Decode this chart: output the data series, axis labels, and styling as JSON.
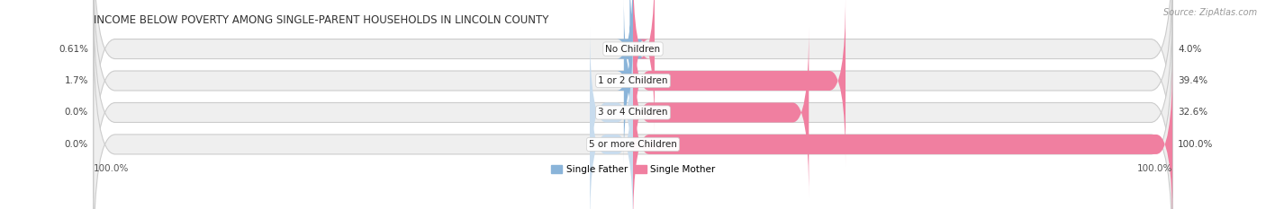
{
  "title": "INCOME BELOW POVERTY AMONG SINGLE-PARENT HOUSEHOLDS IN LINCOLN COUNTY",
  "source": "Source: ZipAtlas.com",
  "categories": [
    "No Children",
    "1 or 2 Children",
    "3 or 4 Children",
    "5 or more Children"
  ],
  "single_father": [
    0.61,
    1.7,
    0.0,
    0.0
  ],
  "single_mother": [
    4.0,
    39.4,
    32.6,
    100.0
  ],
  "father_color": "#8ab4d9",
  "mother_color": "#f07fa0",
  "father_label": "Single Father",
  "mother_label": "Single Mother",
  "father_label_values": [
    "0.61%",
    "1.7%",
    "0.0%",
    "0.0%"
  ],
  "mother_label_values": [
    "4.0%",
    "39.4%",
    "32.6%",
    "100.0%"
  ],
  "x_left_label": "100.0%",
  "x_right_label": "100.0%",
  "bg_bar_color": "#efefef",
  "bar_border_color": "#cccccc",
  "title_fontsize": 8.5,
  "label_fontsize": 7.5,
  "value_fontsize": 7.5,
  "tick_fontsize": 7.5,
  "source_fontsize": 7.0
}
